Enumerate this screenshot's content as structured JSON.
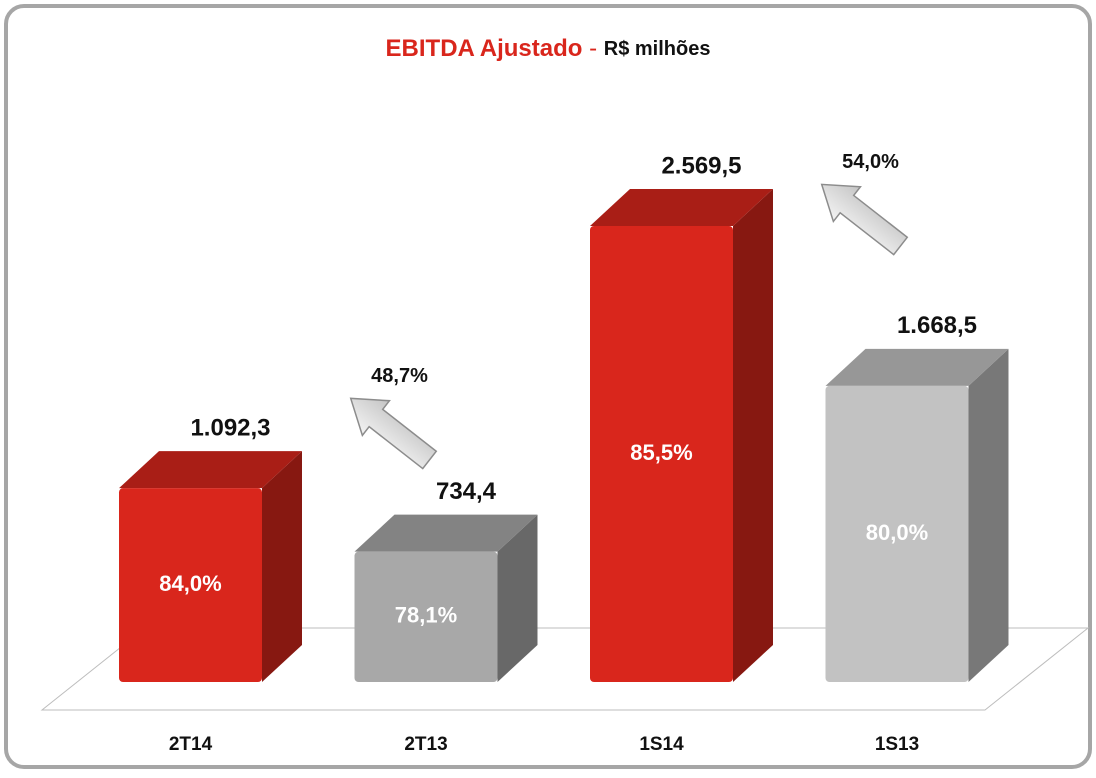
{
  "chart_data": {
    "type": "bar3d",
    "title": "EBITDA Ajustado",
    "subtitle": "R$ milhões",
    "categories": [
      "2T14",
      "2T13",
      "1S14",
      "1S13"
    ],
    "values": [
      1092.3,
      734.4,
      2569.5,
      1668.5
    ],
    "value_labels": [
      "1.092,3",
      "734,4",
      "2.569,5",
      "1.668,5"
    ],
    "colors": [
      "#d9261c",
      "#a8a8a8",
      "#d9261c",
      "#c2c2c2"
    ],
    "margins": {
      "values": [
        84.0,
        78.1,
        85.5,
        80.0
      ],
      "value_labels": [
        "84,0%",
        "78,1%",
        "85,5%",
        "80,0%"
      ]
    },
    "growth": {
      "values": [
        48.7,
        54.0
      ],
      "value_labels": [
        "48,7%",
        "54,0%"
      ]
    }
  }
}
